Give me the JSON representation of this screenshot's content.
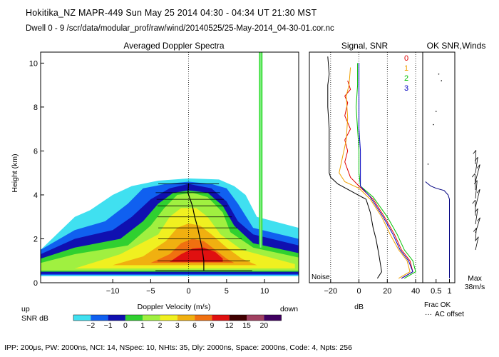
{
  "header": {
    "line1": "Hokitika_NZ  MAPR-449  Sun May 25 2014 04:30 - 04:34 UT 21:30 MST",
    "line2": "Dwell  0 - 9   /scr/data/modular_prof/raw/wind/20140525/25-May-2014_04-30-01.cor.nc"
  },
  "footer": "IPP: 200μs,  PW: 2000ns,  NCI:  14,  NSpec: 10, NHts: 35,  Dly: 2000ns,  Space: 2000ns,  Code: 4,  Npts: 256",
  "colors": {
    "snr_palette": [
      "#40e0f0",
      "#1060f0",
      "#1010b0",
      "#30d030",
      "#a0f040",
      "#f0f020",
      "#f0b010",
      "#f07010",
      "#e01010",
      "#400000",
      "#a04060",
      "#400060"
    ]
  },
  "chart_data": [
    {
      "type": "heatmap",
      "title": "Averaged Doppler Spectra",
      "xlabel": "Doppler Velocity (m/s)",
      "ylabel": "Height (km)",
      "xlim": [
        -19.5,
        14.5
      ],
      "ylim": [
        0,
        10.5
      ],
      "xticks": [
        -10,
        -5,
        0,
        5,
        10
      ],
      "yticks": [
        0,
        2,
        4,
        6,
        8,
        10
      ],
      "left_note": "up",
      "right_note": "down",
      "colorbar": {
        "label": "SNR dB",
        "ticks": [
          "-2",
          "-1",
          "0",
          "1",
          "2",
          "3",
          "6",
          "9",
          "12",
          "15",
          "20"
        ]
      },
      "contours": [
        {
          "level": -2,
          "left_edge": [
            [
              0.3,
              -19.5
            ],
            [
              1.5,
              -19.5
            ],
            [
              3.0,
              -15
            ],
            [
              3.3,
              -13
            ],
            [
              4.0,
              -10
            ],
            [
              4.4,
              -7.5
            ],
            [
              4.65,
              -4
            ],
            [
              4.75,
              0
            ],
            [
              4.7,
              4
            ],
            [
              4.4,
              6
            ],
            [
              4.0,
              7.5
            ],
            [
              3.0,
              9
            ],
            [
              2.5,
              14.5
            ],
            [
              0.3,
              14.5
            ]
          ]
        },
        {
          "level": -1,
          "left_edge": [
            [
              0.35,
              -19.5
            ],
            [
              1.5,
              -19.5
            ],
            [
              2.4,
              -15
            ],
            [
              2.8,
              -11
            ],
            [
              3.6,
              -8
            ],
            [
              4.3,
              -6
            ],
            [
              4.5,
              -3
            ],
            [
              4.6,
              0
            ],
            [
              4.5,
              3
            ],
            [
              4.3,
              5
            ],
            [
              3.6,
              6.5
            ],
            [
              2.5,
              8.5
            ],
            [
              2.0,
              14.5
            ],
            [
              0.35,
              14.5
            ]
          ]
        },
        {
          "level": 0,
          "left_edge": [
            [
              0.4,
              -19.5
            ],
            [
              1.3,
              -19.5
            ],
            [
              2.0,
              -15
            ],
            [
              2.4,
              -10
            ],
            [
              3.0,
              -7.5
            ],
            [
              3.8,
              -5
            ],
            [
              4.3,
              -2.5
            ],
            [
              4.5,
              0
            ],
            [
              4.3,
              3
            ],
            [
              3.7,
              5
            ],
            [
              2.8,
              6.5
            ],
            [
              2.2,
              8.5
            ],
            [
              1.7,
              14.5
            ],
            [
              0.4,
              14.5
            ]
          ]
        },
        {
          "level": 1,
          "left_edge": [
            [
              0.5,
              -19.5
            ],
            [
              1.1,
              -19.5
            ],
            [
              1.6,
              -15
            ],
            [
              2.0,
              -9
            ],
            [
              2.8,
              -6
            ],
            [
              3.6,
              -4
            ],
            [
              4.1,
              -2
            ],
            [
              4.2,
              0
            ],
            [
              4.1,
              2.5
            ],
            [
              3.5,
              4.5
            ],
            [
              2.6,
              6
            ],
            [
              1.8,
              8.5
            ],
            [
              1.35,
              14.5
            ],
            [
              0.5,
              14.5
            ]
          ]
        },
        {
          "level": 2,
          "left_edge": [
            [
              0.55,
              -19.5
            ],
            [
              0.9,
              -19.5
            ],
            [
              1.3,
              -15
            ],
            [
              1.7,
              -8
            ],
            [
              2.6,
              -5
            ],
            [
              3.4,
              -3.2
            ],
            [
              4.0,
              -1.5
            ],
            [
              4.1,
              0.5
            ],
            [
              3.9,
              2.5
            ],
            [
              3.2,
              4.5
            ],
            [
              2.3,
              5.5
            ],
            [
              1.6,
              8.5
            ],
            [
              1.15,
              14.5
            ],
            [
              0.55,
              14.5
            ]
          ]
        },
        {
          "level": 3,
          "left_edge": [
            [
              0.65,
              -15
            ],
            [
              1.3,
              -9
            ],
            [
              2.2,
              -4
            ],
            [
              3.0,
              -2.5
            ],
            [
              3.4,
              -1
            ],
            [
              3.4,
              1
            ],
            [
              3.0,
              2.5
            ],
            [
              2.2,
              4.2
            ],
            [
              1.5,
              7
            ],
            [
              0.85,
              14
            ],
            [
              0.65,
              14
            ]
          ]
        },
        {
          "level": 6,
          "left_edge": [
            [
              0.8,
              -10
            ],
            [
              1.2,
              -6
            ],
            [
              1.9,
              -3
            ],
            [
              2.5,
              -1.5
            ],
            [
              2.7,
              0
            ],
            [
              2.6,
              1.5
            ],
            [
              2.2,
              3
            ],
            [
              1.6,
              5
            ],
            [
              1.1,
              7
            ],
            [
              0.8,
              9
            ]
          ]
        },
        {
          "level": 9,
          "left_edge": [
            [
              0.9,
              -5
            ],
            [
              1.3,
              -2.5
            ],
            [
              1.8,
              -1
            ],
            [
              2.0,
              0.5
            ],
            [
              1.9,
              2
            ],
            [
              1.5,
              3.5
            ],
            [
              1.1,
              5
            ],
            [
              0.9,
              6
            ]
          ]
        },
        {
          "level": 12,
          "left_edge": [
            [
              0.95,
              -2.5
            ],
            [
              1.3,
              -1
            ],
            [
              1.55,
              0.5
            ],
            [
              1.6,
              2
            ],
            [
              1.4,
              3.5
            ],
            [
              1.1,
              4.5
            ],
            [
              0.95,
              4.5
            ]
          ]
        }
      ],
      "interference_line": {
        "x": 9.5,
        "y_bottom": 1.6,
        "y_top": 10.5,
        "color": "#40e040"
      },
      "peak_profile": [
        [
          0.55,
          2.0
        ],
        [
          1.0,
          2.0
        ],
        [
          1.5,
          1.8
        ],
        [
          2.0,
          1.5
        ],
        [
          2.5,
          1.2
        ],
        [
          3.0,
          0.8
        ],
        [
          3.5,
          0.5
        ],
        [
          3.8,
          0.2
        ],
        [
          4.1,
          -0.1
        ],
        [
          4.5,
          0.0
        ]
      ]
    },
    {
      "type": "line",
      "title": "Signal, SNR",
      "xlabel": "dB",
      "xlim": [
        -35,
        45
      ],
      "ylim": [
        0,
        10.5
      ],
      "xticks": [
        -20,
        0,
        20,
        40
      ],
      "corner_label": "Noise",
      "legend": [
        "0",
        "1",
        "2",
        "3"
      ],
      "series": [
        {
          "name": "Noise",
          "color": "#000000",
          "points": [
            [
              -22,
              10.3
            ],
            [
              -21,
              9.5
            ],
            [
              -22,
              9
            ],
            [
              -22,
              8
            ],
            [
              -21,
              7
            ],
            [
              -21,
              6
            ],
            [
              -21,
              5
            ],
            [
              -20,
              4.8
            ],
            [
              -15,
              4.5
            ],
            [
              5,
              3.8
            ],
            [
              8,
              3.2
            ],
            [
              10,
              2.5
            ],
            [
              12,
              2.0
            ],
            [
              14,
              1.3
            ],
            [
              16,
              0.5
            ],
            [
              13,
              0.2
            ]
          ]
        },
        {
          "name": "0",
          "color": "#e00000",
          "points": [
            [
              -8,
              9.2
            ],
            [
              -6,
              8.8
            ],
            [
              -10,
              8.5
            ],
            [
              -8,
              8.2
            ],
            [
              -10,
              7.6
            ],
            [
              -6,
              7.0
            ],
            [
              -10,
              6.5
            ],
            [
              -8,
              6.0
            ],
            [
              -10,
              5.5
            ],
            [
              -6,
              4.8
            ],
            [
              0,
              4.4
            ],
            [
              10,
              3.8
            ],
            [
              18,
              3.0
            ],
            [
              25,
              2.2
            ],
            [
              30,
              1.5
            ],
            [
              36,
              1.0
            ],
            [
              38,
              0.5
            ],
            [
              30,
              0.2
            ]
          ]
        },
        {
          "name": "1",
          "color": "#f0a000",
          "points": [
            [
              -6,
              9.8
            ],
            [
              -7,
              9.0
            ],
            [
              -9,
              8.5
            ],
            [
              -8,
              7.5
            ],
            [
              -9,
              6.5
            ],
            [
              -14,
              5.0
            ],
            [
              -10,
              4.6
            ],
            [
              0,
              4.3
            ],
            [
              8,
              3.8
            ],
            [
              16,
              3.0
            ],
            [
              22,
              2.2
            ],
            [
              28,
              1.5
            ],
            [
              34,
              1.0
            ],
            [
              36,
              0.5
            ],
            [
              28,
              0.2
            ]
          ]
        },
        {
          "name": "2",
          "color": "#00c000",
          "points": [
            [
              -1,
              10.0
            ],
            [
              -1,
              9.0
            ],
            [
              -2,
              8.0
            ],
            [
              -1,
              7.0
            ],
            [
              0,
              6.0
            ],
            [
              0,
              5.0
            ],
            [
              1,
              4.4
            ],
            [
              10,
              3.9
            ],
            [
              20,
              3.0
            ],
            [
              27,
              2.2
            ],
            [
              32,
              1.5
            ],
            [
              38,
              1.0
            ],
            [
              40,
              0.5
            ],
            [
              32,
              0.2
            ]
          ]
        },
        {
          "name": "3",
          "color": "#0000c0",
          "points": [
            [
              0,
              10.0
            ],
            [
              0,
              9.0
            ],
            [
              0,
              8.0
            ],
            [
              0,
              7.0
            ],
            [
              1,
              6.0
            ],
            [
              1,
              5.0
            ],
            [
              1,
              4.4
            ],
            [
              8,
              3.9
            ],
            [
              17,
              3.0
            ],
            [
              24,
              2.2
            ],
            [
              29,
              1.5
            ],
            [
              35,
              1.0
            ],
            [
              38,
              0.5
            ],
            [
              30,
              0.2
            ]
          ]
        }
      ]
    },
    {
      "type": "line",
      "title": "OK SNR,Winds",
      "xlabel": "Frac OK",
      "xlim": [
        0,
        1.2
      ],
      "ylim": [
        0,
        10.5
      ],
      "xticks": [
        "0.5",
        "1"
      ],
      "xlabel2": "AC offset",
      "series": [
        {
          "name": "frac_ok",
          "color": "#000080",
          "points": [
            [
              0.1,
              4.6
            ],
            [
              0.3,
              4.4
            ],
            [
              0.5,
              4.3
            ],
            [
              0.8,
              4.2
            ],
            [
              0.95,
              4.0
            ],
            [
              1.0,
              3.8
            ],
            [
              1.0,
              0.2
            ]
          ]
        }
      ],
      "scatter_points": [
        [
          0.6,
          9.5
        ],
        [
          0.7,
          9.2
        ],
        [
          0.5,
          7.8
        ],
        [
          0.4,
          7.2
        ],
        [
          0.2,
          5.4
        ]
      ],
      "wind_scale": {
        "label1": "Max",
        "label2": "38m/s"
      }
    }
  ]
}
